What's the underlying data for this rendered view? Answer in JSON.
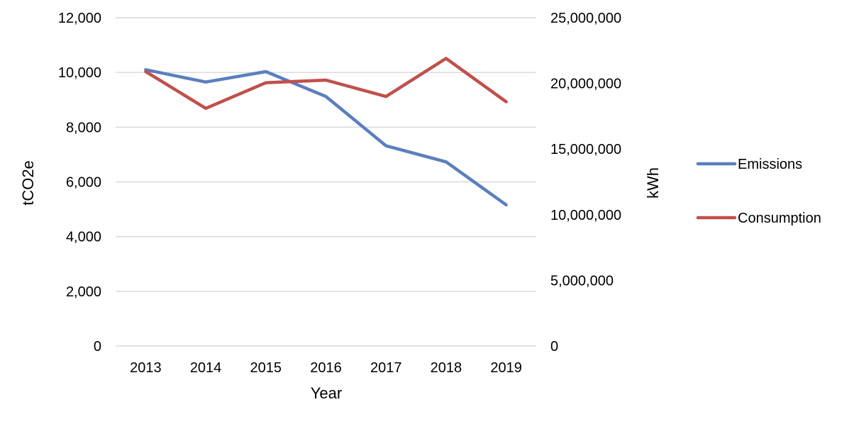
{
  "chart_data": {
    "type": "line",
    "title": "",
    "categories": [
      "2013",
      "2014",
      "2015",
      "2016",
      "2017",
      "2018",
      "2019"
    ],
    "xlabel": "Year",
    "ylabel": "tCO2e",
    "y2label": "kWh",
    "ylim": [
      0,
      12000
    ],
    "y2lim": [
      0,
      25000000
    ],
    "yticks": [
      0,
      2000,
      4000,
      6000,
      8000,
      10000,
      12000
    ],
    "y2ticks": [
      0,
      5000000,
      10000000,
      15000000,
      20000000,
      25000000
    ],
    "yticks_labels": [
      "0",
      "2,000",
      "4,000",
      "6,000",
      "8,000",
      "10,000",
      "12,000"
    ],
    "y2ticks_labels": [
      "0",
      "5,000,000",
      "10,000,000",
      "15,000,000",
      "20,000,000",
      "25,000,000"
    ],
    "grid": true,
    "legend": "right",
    "series": [
      {
        "name": "Emissions",
        "axis": "left",
        "color": "#5b7fbe",
        "values": [
          10100,
          9650,
          10030,
          9120,
          7320,
          6730,
          5160
        ]
      },
      {
        "name": "Consumption",
        "axis": "right",
        "color": "#c0504d",
        "values": [
          20900000,
          18100000,
          20050000,
          20250000,
          19000000,
          21900000,
          18600000
        ]
      }
    ]
  }
}
